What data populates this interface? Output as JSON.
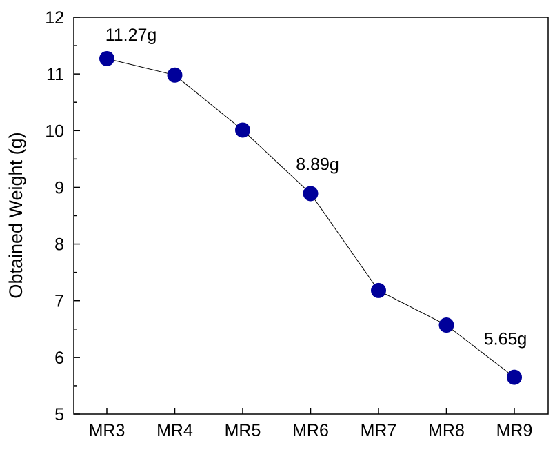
{
  "chart_data": {
    "type": "line",
    "title": "",
    "xlabel": "",
    "ylabel": "Obtained Weight (g)",
    "categories": [
      "MR3",
      "MR4",
      "MR5",
      "MR6",
      "MR7",
      "MR8",
      "MR9"
    ],
    "series": [
      {
        "values": [
          11.27,
          10.98,
          10.01,
          8.89,
          7.18,
          6.57,
          5.65
        ]
      }
    ],
    "ylim": [
      5,
      12
    ],
    "yticks": [
      5,
      6,
      7,
      8,
      9,
      10,
      11,
      12
    ],
    "grid": false,
    "legend": "none",
    "marker_color": "#00009a",
    "line_color": "#000000",
    "annotations": [
      {
        "index": 0,
        "text": "11.27g"
      },
      {
        "index": 3,
        "text": "8.89g"
      },
      {
        "index": 6,
        "text": "5.65g"
      }
    ]
  }
}
